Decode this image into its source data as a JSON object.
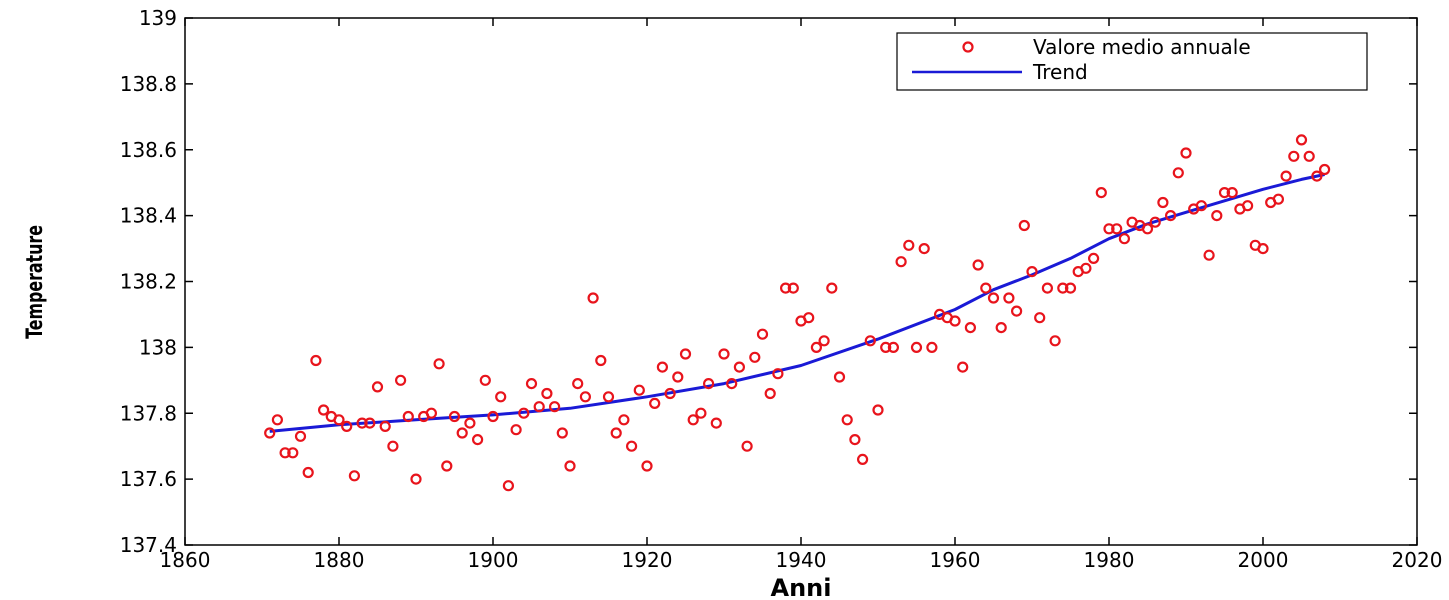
{
  "chart_data": {
    "type": "scatter",
    "title": "",
    "xlabel": "Anni",
    "ylabel": "Temperature",
    "xlim": [
      1860,
      2020
    ],
    "ylim": [
      137.4,
      139
    ],
    "xticks": [
      1860,
      1880,
      1900,
      1920,
      1940,
      1960,
      1980,
      2000,
      2020
    ],
    "yticks": [
      137.4,
      137.6,
      137.8,
      138,
      138.2,
      138.4,
      138.6,
      138.8,
      139
    ],
    "xtick_labels": [
      "1860",
      "1880",
      "1900",
      "1920",
      "1940",
      "1960",
      "1980",
      "2000",
      "2020"
    ],
    "ytick_labels": [
      "137.4",
      "137.6",
      "137.8",
      "138",
      "138.2",
      "138.4",
      "138.6",
      "138.8",
      "139"
    ],
    "legend_position": "top-right",
    "colors": {
      "scatter": "#e8141c",
      "trend": "#1a1ad6"
    },
    "series": [
      {
        "name": "Valore medio annuale",
        "kind": "scatter",
        "x": [
          1871,
          1872,
          1873,
          1874,
          1875,
          1876,
          1877,
          1878,
          1879,
          1880,
          1881,
          1882,
          1883,
          1884,
          1885,
          1886,
          1887,
          1888,
          1889,
          1890,
          1891,
          1892,
          1893,
          1894,
          1895,
          1896,
          1897,
          1898,
          1899,
          1900,
          1901,
          1902,
          1903,
          1904,
          1905,
          1906,
          1907,
          1908,
          1909,
          1910,
          1911,
          1912,
          1913,
          1914,
          1915,
          1916,
          1917,
          1918,
          1919,
          1920,
          1921,
          1922,
          1923,
          1924,
          1925,
          1926,
          1927,
          1928,
          1929,
          1930,
          1931,
          1932,
          1933,
          1934,
          1935,
          1936,
          1937,
          1938,
          1939,
          1940,
          1941,
          1942,
          1943,
          1944,
          1945,
          1946,
          1947,
          1948,
          1949,
          1950,
          1951,
          1952,
          1953,
          1954,
          1955,
          1956,
          1957,
          1958,
          1959,
          1960,
          1961,
          1962,
          1963,
          1964,
          1965,
          1966,
          1967,
          1968,
          1969,
          1970,
          1971,
          1972,
          1973,
          1974,
          1975,
          1976,
          1977,
          1978,
          1979,
          1980,
          1981,
          1982,
          1983,
          1984,
          1985,
          1986,
          1987,
          1988,
          1989,
          1990,
          1991,
          1992,
          1993,
          1994,
          1995,
          1996,
          1997,
          1998,
          1999,
          2000,
          2001,
          2002,
          2003,
          2004,
          2005,
          2006,
          2007,
          2008
        ],
        "y": [
          137.74,
          137.78,
          137.68,
          137.68,
          137.73,
          137.62,
          137.96,
          137.81,
          137.79,
          137.78,
          137.76,
          137.61,
          137.77,
          137.77,
          137.88,
          137.76,
          137.7,
          137.9,
          137.79,
          137.6,
          137.79,
          137.8,
          137.95,
          137.64,
          137.79,
          137.74,
          137.77,
          137.72,
          137.9,
          137.79,
          137.85,
          137.58,
          137.75,
          137.8,
          137.89,
          137.82,
          137.86,
          137.82,
          137.74,
          137.64,
          137.89,
          137.85,
          138.15,
          137.96,
          137.85,
          137.74,
          137.78,
          137.7,
          137.87,
          137.64,
          137.83,
          137.94,
          137.86,
          137.91,
          137.98,
          137.78,
          137.8,
          137.89,
          137.77,
          137.98,
          137.89,
          137.94,
          137.7,
          137.97,
          138.04,
          137.86,
          137.92,
          138.18,
          138.18,
          138.08,
          138.09,
          138.0,
          138.02,
          138.18,
          137.91,
          137.78,
          137.72,
          137.66,
          138.02,
          137.81,
          138.0,
          138.0,
          138.26,
          138.31,
          138.0,
          138.3,
          138.0,
          138.1,
          138.09,
          138.08,
          137.94,
          138.06,
          138.25,
          138.18,
          138.15,
          138.06,
          138.15,
          138.11,
          138.37,
          138.23,
          138.09,
          138.18,
          138.02,
          138.18,
          138.18,
          138.23,
          138.24,
          138.27,
          138.47,
          138.36,
          138.36,
          138.33,
          138.38,
          138.37,
          138.36,
          138.38,
          138.44,
          138.4,
          138.53,
          138.59,
          138.42,
          138.43,
          138.28,
          138.4,
          138.47,
          138.47,
          138.42,
          138.43,
          138.31,
          138.3,
          138.44,
          138.45,
          138.52,
          138.58,
          138.63,
          138.58,
          138.52,
          138.54
        ]
      },
      {
        "name": "Trend",
        "kind": "line",
        "x": [
          1871,
          1880,
          1890,
          1900,
          1910,
          1920,
          1930,
          1940,
          1950,
          1960,
          1965,
          1970,
          1975,
          1980,
          1985,
          1990,
          1995,
          2000,
          2005,
          2008
        ],
        "y": [
          137.745,
          137.765,
          137.78,
          137.795,
          137.815,
          137.85,
          137.89,
          137.945,
          138.025,
          138.115,
          138.175,
          138.22,
          138.27,
          138.33,
          138.375,
          138.41,
          138.445,
          138.48,
          138.51,
          138.525
        ]
      }
    ]
  }
}
